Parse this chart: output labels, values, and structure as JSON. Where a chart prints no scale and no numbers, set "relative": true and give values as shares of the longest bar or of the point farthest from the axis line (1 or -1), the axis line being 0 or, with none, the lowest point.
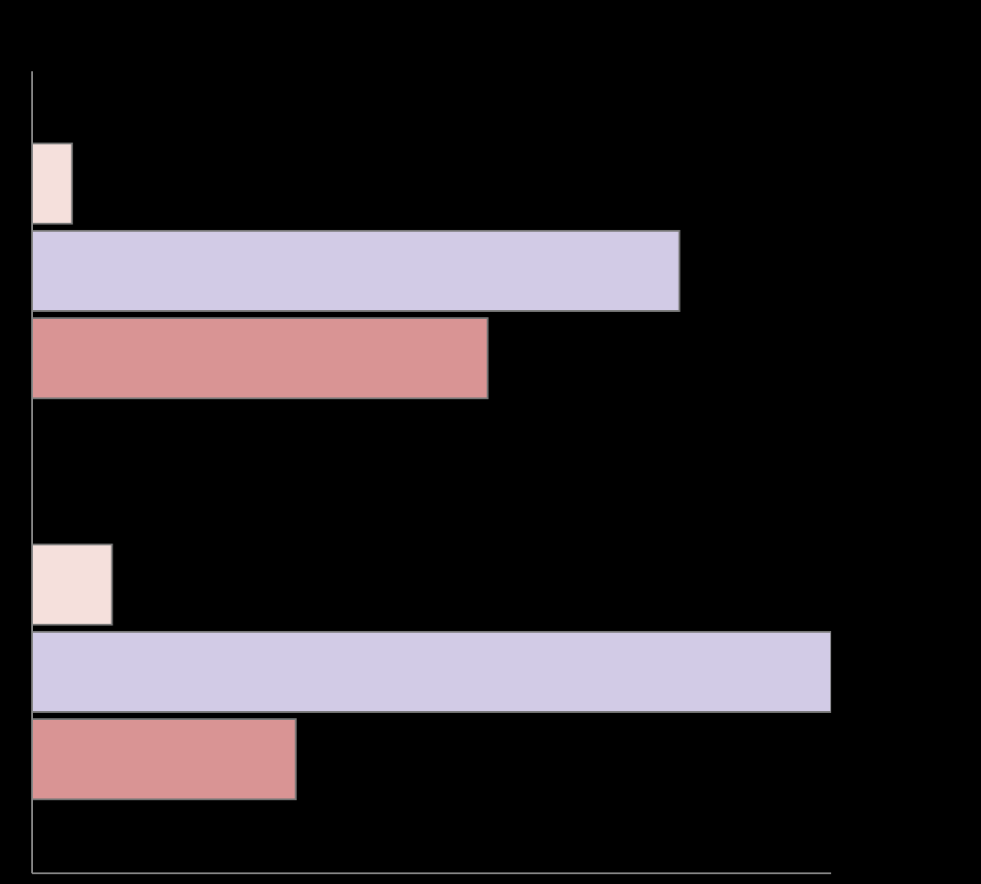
{
  "chart_data": {
    "type": "bar",
    "orientation": "horizontal",
    "relative": true,
    "categories": [
      null,
      null
    ],
    "series": [
      {
        "color": "#f5e0dc",
        "values": [
          0.05,
          0.1
        ]
      },
      {
        "color": "#d2cbe6",
        "values": [
          0.81,
          1
        ]
      },
      {
        "color": "#d99494",
        "values": [
          0.57,
          0.33
        ]
      }
    ],
    "grid": false,
    "legend": false
  }
}
